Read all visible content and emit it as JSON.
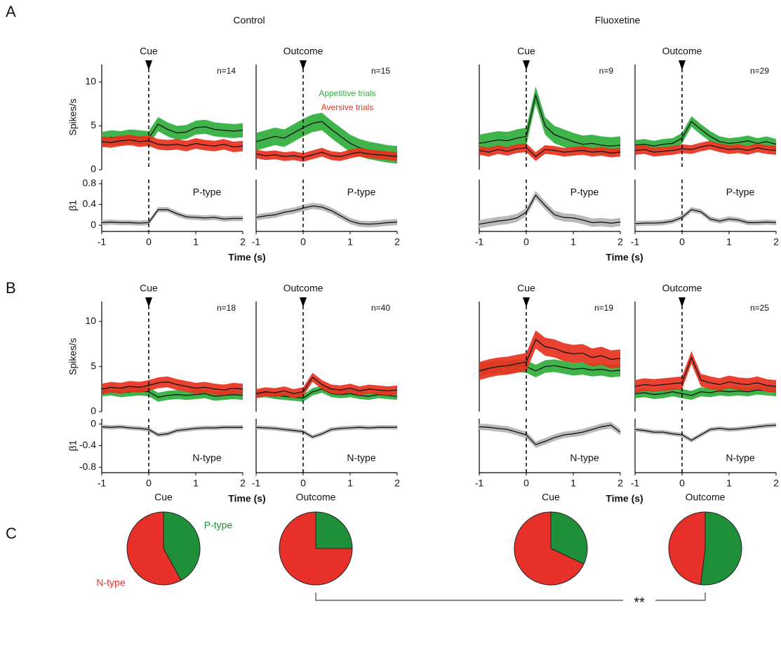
{
  "panels": [
    "A",
    "B",
    "C"
  ],
  "groups": [
    "Control",
    "Fluoxetine"
  ],
  "significance": "**",
  "chart_data": [
    {
      "type": "line",
      "title": "Cue",
      "annotation": "n=14",
      "ylabel": "Spikes/s",
      "xlim": [
        -1,
        2
      ],
      "ylim": [
        0,
        12
      ],
      "yticks": [
        0,
        5,
        10
      ],
      "x": [
        -1,
        -0.8,
        -0.6,
        -0.4,
        -0.2,
        0,
        0.2,
        0.4,
        0.6,
        0.8,
        1,
        1.2,
        1.4,
        1.6,
        1.8,
        2
      ],
      "series": [
        {
          "color": "#2fae3c",
          "error": 0.8,
          "values": [
            3.5,
            3.7,
            3.6,
            3.8,
            3.7,
            3.6,
            5.2,
            4.6,
            4.2,
            4.3,
            4.8,
            4.9,
            4.6,
            4.5,
            4.4,
            4.5
          ]
        },
        {
          "color": "#e8321e",
          "error": 0.6,
          "values": [
            3.2,
            3.1,
            3.3,
            3.4,
            3.2,
            3.3,
            2.9,
            2.8,
            2.9,
            2.7,
            3.0,
            2.8,
            2.7,
            2.9,
            2.6,
            2.7
          ]
        }
      ]
    },
    {
      "type": "line",
      "title": "Outcome",
      "annotation": "n=15",
      "xlim": [
        -1,
        2
      ],
      "ylim": [
        0,
        12
      ],
      "legend": "upper center",
      "x": [
        -1,
        -0.8,
        -0.6,
        -0.4,
        -0.2,
        0,
        0.2,
        0.4,
        0.6,
        0.8,
        1,
        1.2,
        1.4,
        1.6,
        1.8,
        2
      ],
      "series": [
        {
          "name": "Appetitive trials",
          "color": "#2fae3c",
          "error": 1.0,
          "values": [
            3.2,
            3.5,
            3.8,
            3.6,
            4.2,
            4.8,
            5.3,
            5.5,
            4.6,
            3.8,
            3.0,
            2.5,
            2.2,
            2.0,
            1.8,
            1.7
          ]
        },
        {
          "name": "Aversive trials",
          "color": "#e8321e",
          "error": 0.5,
          "values": [
            1.8,
            1.6,
            1.7,
            1.5,
            1.6,
            1.4,
            1.7,
            2.0,
            1.6,
            1.5,
            1.8,
            2.0,
            1.8,
            1.7,
            1.6,
            1.5
          ]
        }
      ]
    },
    {
      "type": "line",
      "title": "Cue",
      "annotation": "n=9",
      "xlim": [
        -1,
        2
      ],
      "ylim": [
        0,
        12
      ],
      "x": [
        -1,
        -0.8,
        -0.6,
        -0.4,
        -0.2,
        0,
        0.2,
        0.4,
        0.6,
        0.8,
        1,
        1.2,
        1.4,
        1.6,
        1.8,
        2
      ],
      "series": [
        {
          "color": "#2fae3c",
          "error": 1.0,
          "values": [
            3.0,
            3.2,
            3.4,
            3.3,
            3.6,
            3.8,
            8.5,
            5.0,
            4.0,
            3.6,
            3.2,
            2.9,
            3.0,
            2.8,
            2.7,
            2.8
          ]
        },
        {
          "color": "#e8321e",
          "error": 0.5,
          "values": [
            2.2,
            2.0,
            2.3,
            2.1,
            2.4,
            2.5,
            1.5,
            2.3,
            2.2,
            2.0,
            2.1,
            2.2,
            2.0,
            2.1,
            1.9,
            2.0
          ]
        }
      ]
    },
    {
      "type": "line",
      "title": "Outcome",
      "annotation": "n=29",
      "xlim": [
        -1,
        2
      ],
      "ylim": [
        0,
        12
      ],
      "x": [
        -1,
        -0.8,
        -0.6,
        -0.4,
        -0.2,
        0,
        0.2,
        0.4,
        0.6,
        0.8,
        1,
        1.2,
        1.4,
        1.6,
        1.8,
        2
      ],
      "series": [
        {
          "color": "#2fae3c",
          "error": 0.6,
          "values": [
            2.8,
            2.9,
            2.7,
            2.9,
            3.0,
            3.6,
            5.5,
            4.6,
            3.8,
            3.2,
            3.0,
            3.1,
            3.3,
            3.0,
            3.2,
            2.9
          ]
        },
        {
          "color": "#e8321e",
          "error": 0.5,
          "values": [
            2.2,
            2.3,
            2.0,
            2.1,
            2.2,
            2.4,
            2.3,
            2.6,
            2.8,
            2.5,
            2.3,
            2.4,
            2.2,
            2.5,
            2.3,
            2.2
          ]
        }
      ]
    },
    {
      "type": "line",
      "annotation": "P-type",
      "ylabel": "β1",
      "xlabel": "Time (s)",
      "xlim": [
        -1,
        2
      ],
      "ylim": [
        -0.12,
        0.88
      ],
      "yticks": [
        0,
        0.4,
        0.8
      ],
      "xticks": [
        -1,
        0,
        1,
        2
      ],
      "x": [
        -1,
        -0.8,
        -0.6,
        -0.4,
        -0.2,
        0,
        0.2,
        0.4,
        0.6,
        0.8,
        1,
        1.2,
        1.4,
        1.6,
        1.8,
        2
      ],
      "series": [
        {
          "color": "#b9b9b9",
          "error": 0.05,
          "values": [
            0.05,
            0.06,
            0.05,
            0.05,
            0.04,
            0.05,
            0.3,
            0.3,
            0.22,
            0.16,
            0.15,
            0.14,
            0.15,
            0.12,
            0.13,
            0.13
          ]
        }
      ]
    },
    {
      "type": "line",
      "annotation": "P-type",
      "xlim": [
        -1,
        2
      ],
      "ylim": [
        -0.12,
        0.88
      ],
      "xticks": [
        -1,
        0,
        1,
        2
      ],
      "x": [
        -1,
        -0.8,
        -0.6,
        -0.4,
        -0.2,
        0,
        0.2,
        0.4,
        0.6,
        0.8,
        1,
        1.2,
        1.4,
        1.6,
        1.8,
        2
      ],
      "series": [
        {
          "color": "#b9b9b9",
          "error": 0.06,
          "values": [
            0.15,
            0.18,
            0.2,
            0.25,
            0.28,
            0.33,
            0.37,
            0.35,
            0.28,
            0.18,
            0.08,
            0.03,
            0.02,
            0.03,
            0.05,
            0.06
          ]
        }
      ]
    },
    {
      "type": "line",
      "annotation": "P-type",
      "xlabel": "Time (s)",
      "xlim": [
        -1,
        2
      ],
      "ylim": [
        -0.12,
        0.88
      ],
      "xticks": [
        -1,
        0,
        1,
        2
      ],
      "x": [
        -1,
        -0.8,
        -0.6,
        -0.4,
        -0.2,
        0,
        0.2,
        0.4,
        0.6,
        0.8,
        1,
        1.2,
        1.4,
        1.6,
        1.8,
        2
      ],
      "series": [
        {
          "color": "#b9b9b9",
          "error": 0.08,
          "values": [
            0.02,
            0.05,
            0.08,
            0.1,
            0.14,
            0.25,
            0.58,
            0.38,
            0.2,
            0.15,
            0.14,
            0.1,
            0.05,
            0.06,
            0.04,
            0.06
          ]
        }
      ]
    },
    {
      "type": "line",
      "annotation": "P-type",
      "xlim": [
        -1,
        2
      ],
      "ylim": [
        -0.12,
        0.88
      ],
      "xticks": [
        -1,
        0,
        1,
        2
      ],
      "x": [
        -1,
        -0.8,
        -0.6,
        -0.4,
        -0.2,
        0,
        0.2,
        0.4,
        0.6,
        0.8,
        1,
        1.2,
        1.4,
        1.6,
        1.8,
        2
      ],
      "series": [
        {
          "color": "#b9b9b9",
          "error": 0.05,
          "values": [
            0.03,
            0.04,
            0.04,
            0.05,
            0.08,
            0.15,
            0.3,
            0.26,
            0.12,
            0.08,
            0.12,
            0.1,
            0.05,
            0.05,
            0.06,
            0.05
          ]
        }
      ]
    },
    {
      "type": "line",
      "title": "Cue",
      "annotation": "n=18",
      "ylabel": "Spikes/s",
      "xlim": [
        -1,
        2
      ],
      "ylim": [
        0,
        12.2
      ],
      "yticks": [
        0,
        5,
        10
      ],
      "x": [
        -1,
        -0.8,
        -0.6,
        -0.4,
        -0.2,
        0,
        0.2,
        0.4,
        0.6,
        0.8,
        1,
        1.2,
        1.4,
        1.6,
        1.8,
        2
      ],
      "series": [
        {
          "color": "#2fae3c",
          "error": 0.5,
          "values": [
            2.2,
            2.3,
            2.1,
            2.2,
            2.3,
            2.2,
            1.6,
            1.8,
            1.9,
            1.8,
            1.9,
            2.0,
            1.7,
            1.8,
            1.9,
            1.8
          ]
        },
        {
          "color": "#e8321e",
          "error": 0.6,
          "values": [
            2.5,
            2.7,
            2.6,
            2.8,
            2.7,
            2.9,
            3.2,
            3.3,
            3.0,
            2.8,
            2.6,
            2.7,
            2.5,
            2.4,
            2.6,
            2.5
          ]
        }
      ]
    },
    {
      "type": "line",
      "title": "Outcome",
      "annotation": "n=40",
      "xlim": [
        -1,
        2
      ],
      "ylim": [
        0,
        12.2
      ],
      "x": [
        -1,
        -0.8,
        -0.6,
        -0.4,
        -0.2,
        0,
        0.2,
        0.4,
        0.6,
        0.8,
        1,
        1.2,
        1.4,
        1.6,
        1.8,
        2
      ],
      "series": [
        {
          "color": "#2fae3c",
          "error": 0.4,
          "values": [
            1.9,
            2.0,
            1.8,
            1.7,
            1.6,
            1.5,
            2.2,
            2.5,
            2.0,
            1.9,
            2.0,
            1.8,
            1.7,
            1.9,
            1.8,
            1.7
          ]
        },
        {
          "color": "#e8321e",
          "error": 0.5,
          "values": [
            2.0,
            2.2,
            2.1,
            2.3,
            2.0,
            2.2,
            3.8,
            3.0,
            2.5,
            2.4,
            2.6,
            2.3,
            2.5,
            2.4,
            2.3,
            2.4
          ]
        }
      ]
    },
    {
      "type": "line",
      "title": "Cue",
      "annotation": "n=19",
      "xlim": [
        -1,
        2
      ],
      "ylim": [
        0,
        12.2
      ],
      "x": [
        -1,
        -0.8,
        -0.6,
        -0.4,
        -0.2,
        0,
        0.2,
        0.4,
        0.6,
        0.8,
        1,
        1.2,
        1.4,
        1.6,
        1.8,
        2
      ],
      "series": [
        {
          "color": "#2fae3c",
          "error": 0.7,
          "values": [
            4.7,
            4.8,
            5.0,
            4.9,
            5.1,
            5.0,
            4.5,
            5.0,
            5.1,
            4.9,
            4.7,
            4.8,
            4.6,
            4.7,
            4.5,
            4.6
          ]
        },
        {
          "color": "#e8321e",
          "error": 1.0,
          "values": [
            4.5,
            4.8,
            5.0,
            5.1,
            5.3,
            5.5,
            8.0,
            7.2,
            7.0,
            6.6,
            6.4,
            6.5,
            6.0,
            6.2,
            5.8,
            5.9
          ]
        }
      ]
    },
    {
      "type": "line",
      "title": "Outcome",
      "annotation": "n=25",
      "xlim": [
        -1,
        2
      ],
      "ylim": [
        0,
        12.2
      ],
      "x": [
        -1,
        -0.8,
        -0.6,
        -0.4,
        -0.2,
        0,
        0.2,
        0.4,
        0.6,
        0.8,
        1,
        1.2,
        1.4,
        1.6,
        1.8,
        2
      ],
      "series": [
        {
          "color": "#2fae3c",
          "error": 0.5,
          "values": [
            2.0,
            2.1,
            1.9,
            2.0,
            2.2,
            2.0,
            1.8,
            2.2,
            2.1,
            2.3,
            2.2,
            2.3,
            2.2,
            2.4,
            2.3,
            2.2
          ]
        },
        {
          "color": "#e8321e",
          "error": 0.7,
          "values": [
            2.8,
            3.0,
            2.9,
            3.0,
            3.1,
            3.2,
            6.0,
            3.5,
            3.2,
            3.0,
            3.3,
            3.1,
            3.0,
            3.2,
            2.9,
            2.8
          ]
        }
      ]
    },
    {
      "type": "line",
      "annotation": "N-type",
      "ylabel": "β1",
      "xlabel": "Time (s)",
      "xlim": [
        -1,
        2
      ],
      "ylim": [
        -0.9,
        0.1
      ],
      "yticks": [
        0,
        -0.4,
        -0.8
      ],
      "xticks": [
        -1,
        0,
        1,
        2
      ],
      "x": [
        -1,
        -0.8,
        -0.6,
        -0.4,
        -0.2,
        0,
        0.2,
        0.4,
        0.6,
        0.8,
        1,
        1.2,
        1.4,
        1.6,
        1.8,
        2
      ],
      "series": [
        {
          "color": "#b9b9b9",
          "error": 0.04,
          "values": [
            -0.05,
            -0.06,
            -0.05,
            -0.07,
            -0.08,
            -0.1,
            -0.2,
            -0.18,
            -0.12,
            -0.1,
            -0.08,
            -0.07,
            -0.07,
            -0.06,
            -0.06,
            -0.06
          ]
        }
      ]
    },
    {
      "type": "line",
      "annotation": "N-type",
      "xlim": [
        -1,
        2
      ],
      "ylim": [
        -0.9,
        0.1
      ],
      "xticks": [
        -1,
        0,
        1,
        2
      ],
      "x": [
        -1,
        -0.8,
        -0.6,
        -0.4,
        -0.2,
        0,
        0.2,
        0.4,
        0.6,
        0.8,
        1,
        1.2,
        1.4,
        1.6,
        1.8,
        2
      ],
      "series": [
        {
          "color": "#b9b9b9",
          "error": 0.04,
          "values": [
            -0.06,
            -0.07,
            -0.08,
            -0.1,
            -0.12,
            -0.14,
            -0.24,
            -0.18,
            -0.1,
            -0.08,
            -0.07,
            -0.06,
            -0.07,
            -0.06,
            -0.06,
            -0.06
          ]
        }
      ]
    },
    {
      "type": "line",
      "annotation": "N-type",
      "xlabel": "Time (s)",
      "xlim": [
        -1,
        2
      ],
      "ylim": [
        -0.9,
        0.1
      ],
      "xticks": [
        -1,
        0,
        1,
        2
      ],
      "x": [
        -1,
        -0.8,
        -0.6,
        -0.4,
        -0.2,
        0,
        0.2,
        0.4,
        0.6,
        0.8,
        1,
        1.2,
        1.4,
        1.6,
        1.8,
        2
      ],
      "series": [
        {
          "color": "#b9b9b9",
          "error": 0.06,
          "values": [
            -0.05,
            -0.06,
            -0.08,
            -0.1,
            -0.15,
            -0.2,
            -0.38,
            -0.32,
            -0.25,
            -0.2,
            -0.18,
            -0.15,
            -0.1,
            -0.05,
            -0.02,
            -0.15
          ]
        }
      ]
    },
    {
      "type": "line",
      "annotation": "N-type",
      "xlim": [
        -1,
        2
      ],
      "ylim": [
        -0.9,
        0.1
      ],
      "xticks": [
        -1,
        0,
        1,
        2
      ],
      "x": [
        -1,
        -0.8,
        -0.6,
        -0.4,
        -0.2,
        0,
        0.2,
        0.4,
        0.6,
        0.8,
        1,
        1.2,
        1.4,
        1.6,
        1.8,
        2
      ],
      "series": [
        {
          "color": "#b9b9b9",
          "error": 0.04,
          "values": [
            -0.1,
            -0.12,
            -0.15,
            -0.15,
            -0.18,
            -0.2,
            -0.3,
            -0.2,
            -0.1,
            -0.08,
            -0.1,
            -0.09,
            -0.07,
            -0.05,
            -0.03,
            -0.02
          ]
        }
      ]
    },
    {
      "type": "pie",
      "title": "Cue",
      "categories": [
        "P-type",
        "N-type"
      ],
      "values": [
        42,
        58
      ],
      "colors": [
        "#1f8f3a",
        "#e8302a"
      ]
    },
    {
      "type": "pie",
      "title": "Outcome",
      "categories": [
        null,
        null
      ],
      "values": [
        25,
        75
      ],
      "colors": [
        "#1f8f3a",
        "#e8302a"
      ]
    },
    {
      "type": "pie",
      "title": "Cue",
      "categories": [
        null,
        null
      ],
      "values": [
        32,
        68
      ],
      "colors": [
        "#1f8f3a",
        "#e8302a"
      ]
    },
    {
      "type": "pie",
      "title": "Outcome",
      "categories": [
        null,
        null
      ],
      "values": [
        52,
        48
      ],
      "colors": [
        "#1f8f3a",
        "#e8302a"
      ]
    }
  ]
}
